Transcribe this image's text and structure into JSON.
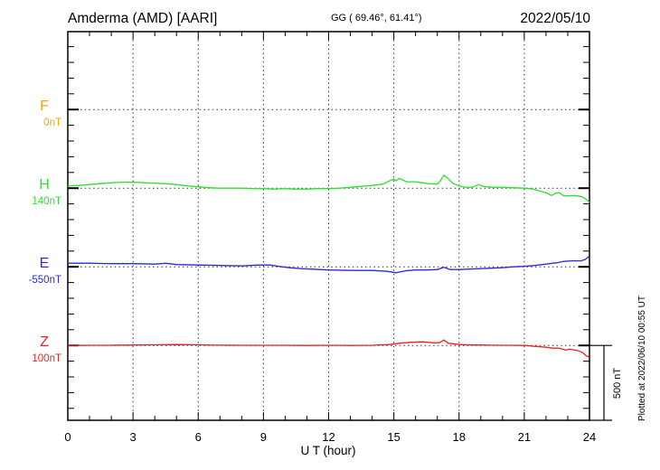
{
  "header": {
    "station": "Amderma (AMD)  [AARI]",
    "coordinates": "GG ( 69.46°,  61.41°)",
    "date": "2022/05/10"
  },
  "chart_data": {
    "type": "line",
    "title": "Amderma (AMD) [AARI] magnetogram 2022/05/10",
    "xlabel": "U T (hour)",
    "xlim": [
      0,
      24
    ],
    "x_tick_hours": [
      0,
      3,
      6,
      9,
      12,
      15,
      18,
      21,
      24
    ],
    "units": "nT",
    "grid": "dotted vertical lines every 3 hours; dotted horizontal line at each component baseline",
    "minor_tick_step_nT": 100,
    "scale_bar": {
      "label": "500 nT",
      "span_nT": 500
    },
    "series": [
      {
        "component": "F",
        "label": "F",
        "baseline_label": "0nT",
        "baseline_nT": 0,
        "color": "#ffa500",
        "points": []
      },
      {
        "component": "H",
        "label": "H",
        "baseline_label": "140nT",
        "baseline_nT": 140,
        "color": "#2fdf2f",
        "points": [
          [
            0,
            155
          ],
          [
            0.5,
            158
          ],
          [
            1,
            164
          ],
          [
            1.5,
            170
          ],
          [
            2,
            176
          ],
          [
            2.5,
            179
          ],
          [
            3,
            179
          ],
          [
            3.5,
            176
          ],
          [
            4,
            173
          ],
          [
            4.5,
            170
          ],
          [
            5,
            164
          ],
          [
            5.5,
            155
          ],
          [
            6,
            149
          ],
          [
            6.5,
            143
          ],
          [
            7,
            140
          ],
          [
            7.5,
            140
          ],
          [
            8,
            140
          ],
          [
            8.5,
            137
          ],
          [
            9,
            137
          ],
          [
            9.5,
            134
          ],
          [
            10,
            137
          ],
          [
            10.5,
            134
          ],
          [
            11,
            134
          ],
          [
            11.5,
            137
          ],
          [
            12,
            137
          ],
          [
            12.5,
            140
          ],
          [
            13,
            146
          ],
          [
            13.5,
            152
          ],
          [
            14,
            158
          ],
          [
            14.5,
            167
          ],
          [
            14.85,
            191
          ],
          [
            15,
            200
          ],
          [
            15.1,
            188
          ],
          [
            15.25,
            205
          ],
          [
            15.4,
            194
          ],
          [
            15.6,
            182
          ],
          [
            16,
            182
          ],
          [
            16.3,
            176
          ],
          [
            16.6,
            170
          ],
          [
            17,
            167
          ],
          [
            17.15,
            191
          ],
          [
            17.3,
            226
          ],
          [
            17.5,
            203
          ],
          [
            17.7,
            173
          ],
          [
            18,
            155
          ],
          [
            18.3,
            146
          ],
          [
            18.6,
            146
          ],
          [
            18.9,
            164
          ],
          [
            19.1,
            152
          ],
          [
            19.5,
            146
          ],
          [
            20,
            146
          ],
          [
            20.5,
            143
          ],
          [
            21,
            140
          ],
          [
            21.4,
            134
          ],
          [
            21.7,
            122
          ],
          [
            22,
            110
          ],
          [
            22.25,
            92
          ],
          [
            22.45,
            107
          ],
          [
            22.6,
            110
          ],
          [
            22.8,
            92
          ],
          [
            23,
            89
          ],
          [
            23.3,
            92
          ],
          [
            23.6,
            86
          ],
          [
            23.8,
            72
          ],
          [
            24,
            48
          ]
        ]
      },
      {
        "component": "E",
        "label": "E",
        "baseline_label": "-550nT",
        "baseline_nT": -550,
        "color": "#2b2bd0",
        "points": [
          [
            0,
            -526
          ],
          [
            0.5,
            -526
          ],
          [
            1,
            -526
          ],
          [
            1.5,
            -528
          ],
          [
            2,
            -529
          ],
          [
            3,
            -529
          ],
          [
            4,
            -532
          ],
          [
            4.5,
            -527
          ],
          [
            5,
            -535
          ],
          [
            6,
            -538
          ],
          [
            7,
            -541
          ],
          [
            8,
            -544
          ],
          [
            8.8,
            -538
          ],
          [
            9.3,
            -538
          ],
          [
            9.7,
            -547
          ],
          [
            10.2,
            -556
          ],
          [
            10.7,
            -562
          ],
          [
            11.2,
            -565
          ],
          [
            12,
            -571
          ],
          [
            13,
            -574
          ],
          [
            14,
            -574
          ],
          [
            14.7,
            -580
          ],
          [
            15.1,
            -589
          ],
          [
            15.5,
            -577
          ],
          [
            16,
            -571
          ],
          [
            16.5,
            -571
          ],
          [
            17,
            -568
          ],
          [
            17.3,
            -553
          ],
          [
            17.6,
            -568
          ],
          [
            18,
            -568
          ],
          [
            18.5,
            -565
          ],
          [
            19,
            -562
          ],
          [
            19.5,
            -559
          ],
          [
            20,
            -556
          ],
          [
            20.5,
            -550
          ],
          [
            21,
            -547
          ],
          [
            21.5,
            -541
          ],
          [
            22,
            -532
          ],
          [
            22.5,
            -523
          ],
          [
            22.8,
            -514
          ],
          [
            23.2,
            -511
          ],
          [
            23.6,
            -511
          ],
          [
            23.8,
            -502
          ],
          [
            24,
            -478
          ]
        ]
      },
      {
        "component": "Z",
        "label": "Z",
        "baseline_label": "100nT",
        "baseline_nT": 100,
        "color": "#e32424",
        "points": [
          [
            0,
            100
          ],
          [
            1,
            101
          ],
          [
            2,
            101
          ],
          [
            3,
            103
          ],
          [
            4,
            104
          ],
          [
            5,
            106
          ],
          [
            6,
            104
          ],
          [
            7,
            102
          ],
          [
            8,
            101
          ],
          [
            9,
            101
          ],
          [
            10,
            101
          ],
          [
            11,
            100
          ],
          [
            12,
            101
          ],
          [
            13,
            100
          ],
          [
            14,
            101
          ],
          [
            14.8,
            106
          ],
          [
            15.3,
            115
          ],
          [
            15.8,
            121
          ],
          [
            16.3,
            124
          ],
          [
            16.8,
            118
          ],
          [
            17.1,
            118
          ],
          [
            17.3,
            136
          ],
          [
            17.5,
            115
          ],
          [
            18,
            106
          ],
          [
            18.5,
            103
          ],
          [
            19,
            103
          ],
          [
            19.5,
            102
          ],
          [
            20,
            101
          ],
          [
            20.5,
            101
          ],
          [
            21,
            100
          ],
          [
            21.5,
            94
          ],
          [
            22,
            88
          ],
          [
            22.3,
            82
          ],
          [
            22.6,
            82
          ],
          [
            22.9,
            70
          ],
          [
            23.1,
            76
          ],
          [
            23.3,
            70
          ],
          [
            23.5,
            64
          ],
          [
            23.7,
            52
          ],
          [
            23.85,
            32
          ],
          [
            23.95,
            26
          ],
          [
            24,
            35
          ]
        ]
      }
    ]
  },
  "footer": {
    "plotted_at": "Plotted at 2022/06/10 00:55 UT"
  }
}
